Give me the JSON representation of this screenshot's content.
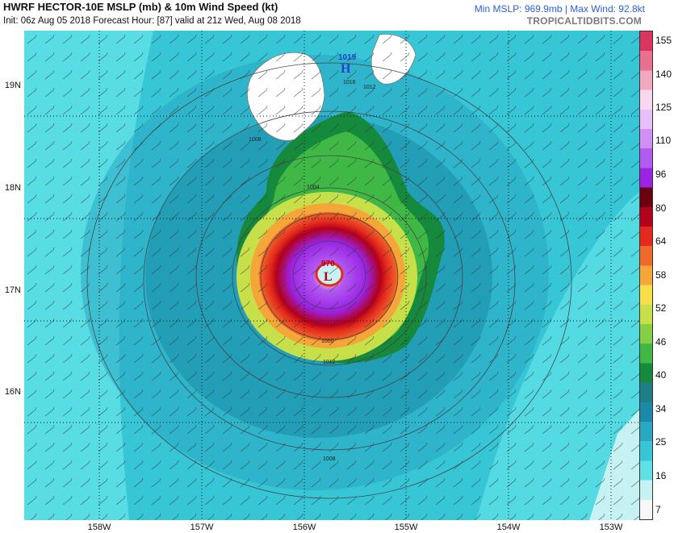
{
  "header": {
    "title": "HWRF HECTOR-10E MSLP (mb) & 10m Wind Speed (kt)",
    "subtitle": "Init: 06z Aug 05 2018   Forecast Hour: [87]   valid at 21z Wed, Aug 08 2018",
    "stats": "Min MSLP: 969.9mb | Max Wind: 92.8kt",
    "brand": "TROPICALTIDBITS.COM"
  },
  "axes": {
    "lat_labels": [
      "19N",
      "18N",
      "17N",
      "16N"
    ],
    "lon_labels": [
      "158W",
      "157W",
      "156W",
      "155W",
      "154W",
      "153W"
    ]
  },
  "map_labels": {
    "high_value": "1019",
    "high_symbol": "H",
    "low_value": "970",
    "low_symbol": "L",
    "isobars": [
      "1016",
      "1012",
      "1008",
      "1004",
      "1000",
      "1012",
      "1008"
    ]
  },
  "colorbar": {
    "labels": [
      "155",
      "140",
      "125",
      "110",
      "96",
      "80",
      "64",
      "58",
      "52",
      "46",
      "40",
      "34",
      "25",
      "16",
      "7"
    ],
    "colors": [
      "#f7f7f7",
      "#c7f2f4",
      "#5fe0e6",
      "#36c6d6",
      "#2aa7c2",
      "#1a8aa8",
      "#1e7f86",
      "#168a3c",
      "#3fb845",
      "#86cf45",
      "#c7e04a",
      "#f5e04a",
      "#f5a638",
      "#ef6a2a",
      "#e42a1e",
      "#b3001b",
      "#6b0010",
      "#9a23e6",
      "#b25bf0",
      "#cf8ff5",
      "#e9bff9",
      "#f7d8f0",
      "#f3a8c0",
      "#ea7090",
      "#d9355e"
    ]
  }
}
